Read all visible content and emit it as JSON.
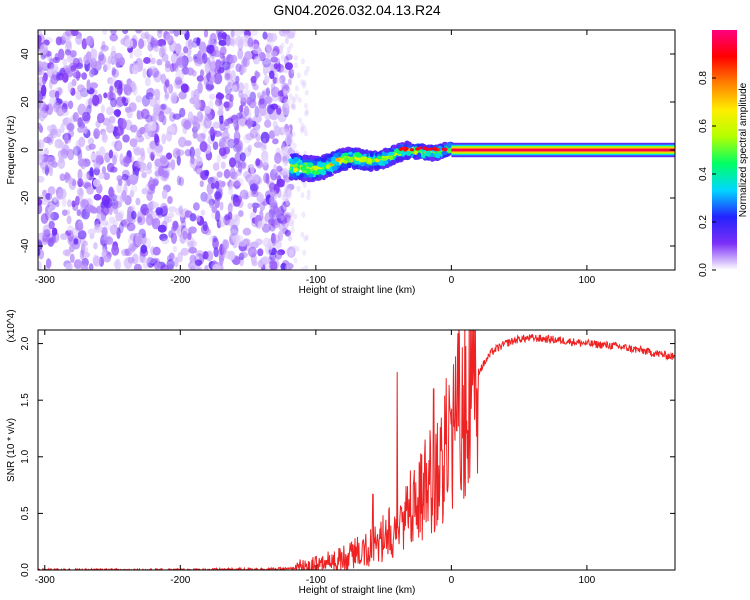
{
  "title": "GN04.2026.032.04.13.R24",
  "chart_data": [
    {
      "type": "heatmap",
      "xlabel": "Height of straight line (km)",
      "ylabel": "Frequency (Hz)",
      "xlim": [
        -305,
        165
      ],
      "ylim": [
        -50,
        50
      ],
      "xticks": [
        -300,
        -200,
        -100,
        0,
        100
      ],
      "yticks": [
        -40,
        -20,
        0,
        20,
        40
      ],
      "colorbar": {
        "label": "Normalized spectral amplitude",
        "range": [
          0,
          1
        ],
        "ticks": [
          "0.0",
          "0.2",
          "0.4",
          "0.6",
          "0.8"
        ],
        "colors": [
          "#ffffff",
          "#7b2ff7",
          "#2323ff",
          "#00d8ff",
          "#00ff64",
          "#b4ff00",
          "#ffee00",
          "#ff8000",
          "#ff0000",
          "#ff0080"
        ]
      },
      "regions": [
        {
          "name": "noise",
          "x_range": [
            -305,
            -118
          ],
          "y_range": [
            -50,
            50
          ],
          "amplitude": [
            0.02,
            0.15
          ]
        },
        {
          "name": "transition",
          "x_range": [
            -118,
            0
          ],
          "center_freq_start": -8,
          "center_freq_end": 1,
          "width": 10,
          "amplitude": [
            0.3,
            0.7
          ]
        },
        {
          "name": "carrier",
          "x_range": [
            0,
            165
          ],
          "center_freq": 0,
          "width": 3,
          "amplitude": 0.95
        }
      ]
    },
    {
      "type": "line",
      "xlabel": "Height of straight line (km)",
      "ylabel": "SNR (10 * v/v)",
      "y_multiplier": "(x10^4)",
      "xlim": [
        -305,
        165
      ],
      "ylim": [
        0,
        2.12
      ],
      "xticks": [
        -300,
        -200,
        -100,
        0,
        100
      ],
      "yticks": [
        0.0,
        0.5,
        1.0,
        1.5,
        2.0
      ],
      "line_color": "#ee2222",
      "series": [
        {
          "x": [
            -305,
            -200,
            -120,
            -100,
            -80,
            -60,
            -50,
            -40,
            -30,
            -20,
            -10,
            0,
            10,
            20,
            30,
            40,
            50,
            60,
            80,
            100,
            120,
            140,
            165
          ],
          "y": [
            0.0,
            0.0,
            0.01,
            0.04,
            0.1,
            0.2,
            0.28,
            0.4,
            0.55,
            0.7,
            0.88,
            1.2,
            1.5,
            1.75,
            1.93,
            2.0,
            2.04,
            2.05,
            2.03,
            2.0,
            1.98,
            1.94,
            1.88
          ]
        }
      ],
      "spikes": [
        {
          "x": -40,
          "y": 1.75
        },
        {
          "x": -13,
          "y": 1.6
        },
        {
          "x": -58,
          "y": 0.67
        }
      ]
    }
  ]
}
